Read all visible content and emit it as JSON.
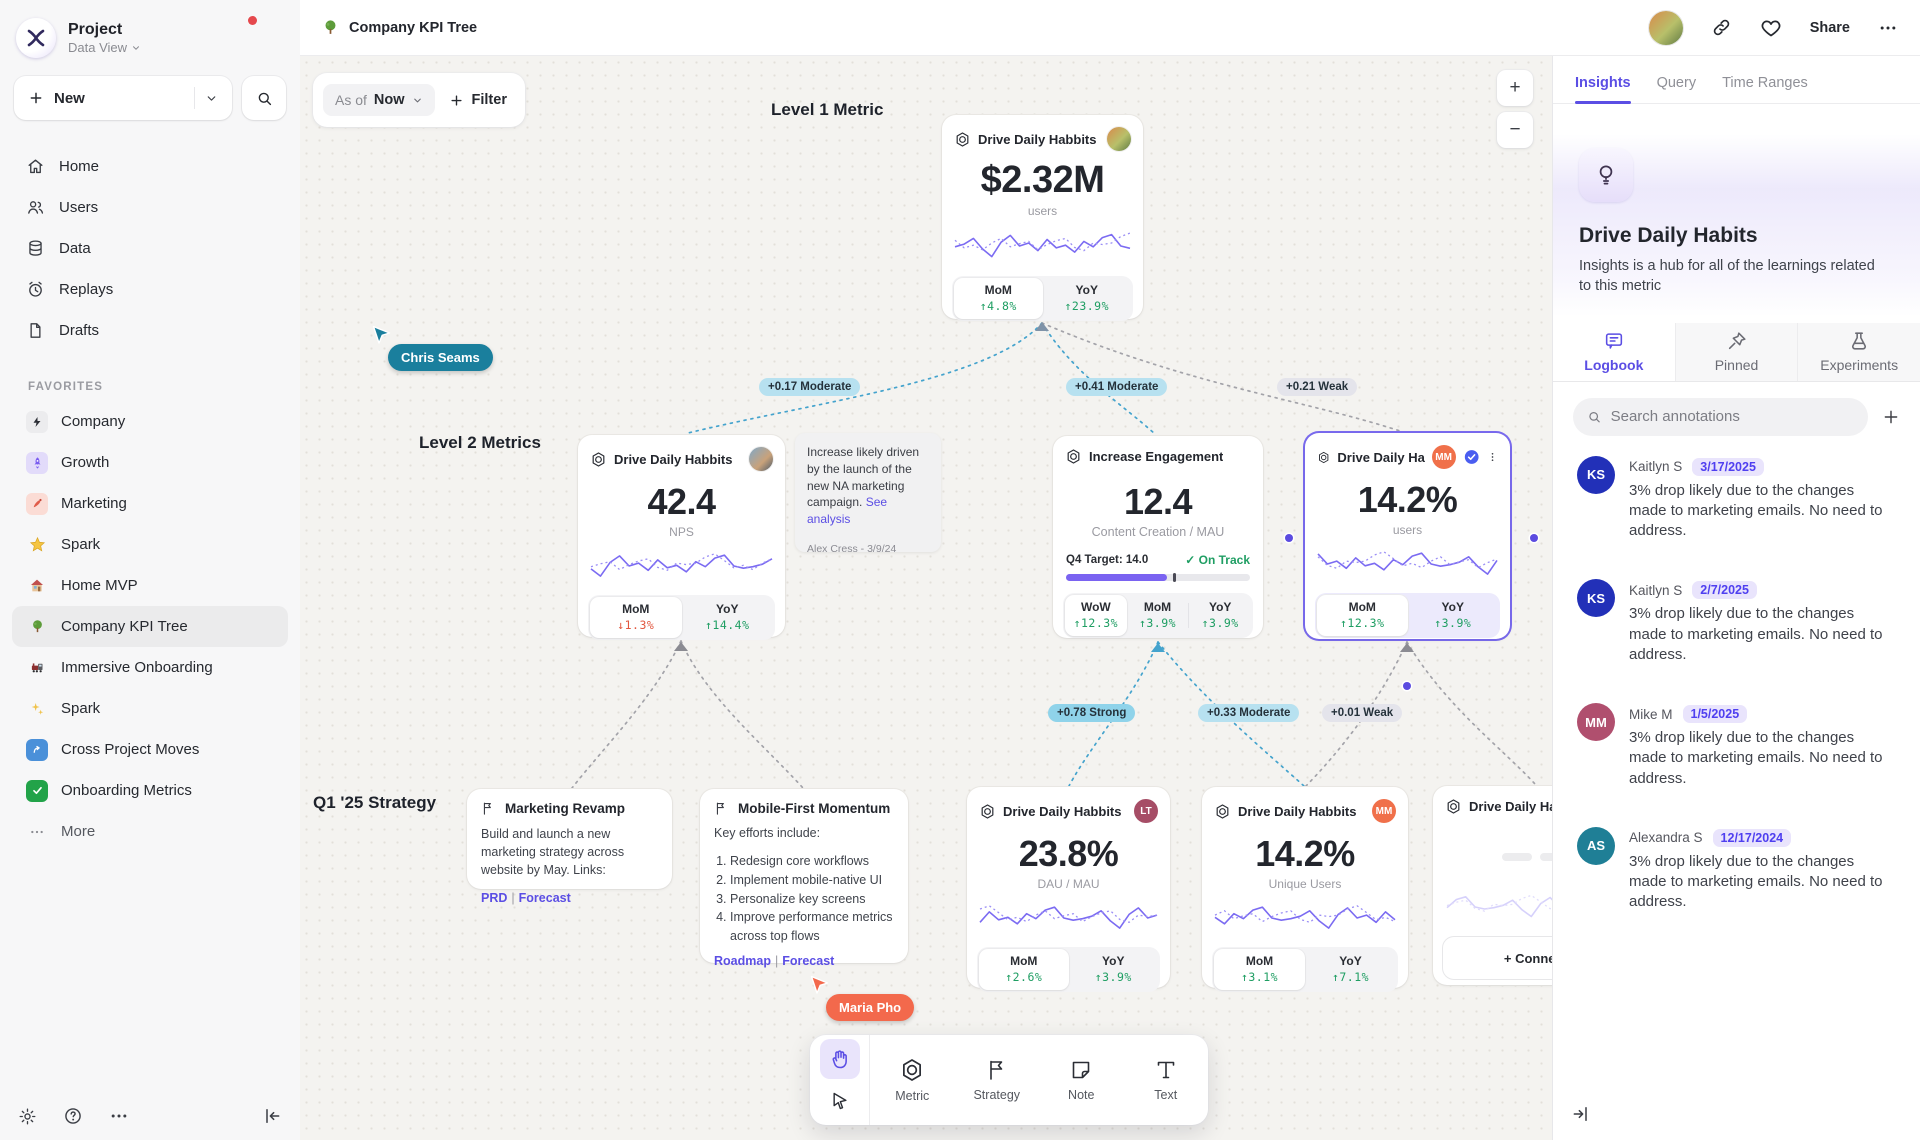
{
  "sidebar": {
    "project_title": "Project",
    "project_subtitle": "Data View",
    "new_button": "New",
    "nav": [
      {
        "label": "Home",
        "icon": "home-icon"
      },
      {
        "label": "Users",
        "icon": "users-icon"
      },
      {
        "label": "Data",
        "icon": "database-icon"
      },
      {
        "label": "Replays",
        "icon": "replay-icon"
      },
      {
        "label": "Drafts",
        "icon": "draft-icon"
      }
    ],
    "favorites_label": "FAVORITES",
    "favorites": [
      {
        "label": "Company",
        "icon": "bolt-icon"
      },
      {
        "label": "Growth",
        "icon": "rocket-icon"
      },
      {
        "label": "Marketing",
        "icon": "paint-icon"
      },
      {
        "label": "Spark",
        "icon": "star-icon"
      },
      {
        "label": "Home MVP",
        "icon": "house-icon"
      },
      {
        "label": "Company KPI Tree",
        "icon": "tree-icon",
        "active": true
      },
      {
        "label": "Immersive Onboarding",
        "icon": "train-icon"
      },
      {
        "label": "Spark",
        "icon": "sparkles-icon"
      },
      {
        "label": "Cross Project Moves",
        "icon": "arrow-up-right-icon"
      },
      {
        "label": "Onboarding Metrics",
        "icon": "check-icon"
      },
      {
        "label": "More",
        "icon": "ellipsis-icon"
      }
    ]
  },
  "header": {
    "title": "Company KPI Tree",
    "share_label": "Share"
  },
  "canvas": {
    "asof_prefix": "As of",
    "asof_value": "Now",
    "filter_label": "Filter",
    "zoom_in": "+",
    "zoom_out": "−",
    "labels": {
      "level1": "Level 1 Metric",
      "level2": "Level 2 Metrics",
      "strategy": "Q1 '25 Strategy"
    },
    "edges": [
      {
        "text": "+0.17 Moderate",
        "strength": "moderate"
      },
      {
        "text": "+0.41 Moderate",
        "strength": "moderate"
      },
      {
        "text": "+0.21 Weak",
        "strength": "weak"
      },
      {
        "text": "+0.78 Strong",
        "strength": "strong"
      },
      {
        "text": "+0.33 Moderate",
        "strength": "moderate"
      },
      {
        "text": "+0.01 Weak",
        "strength": "weak"
      }
    ],
    "cursors": [
      {
        "name": "Chris Seams",
        "color": "#1a7f9d"
      },
      {
        "name": "Maria Pho",
        "color": "#f3694c"
      }
    ]
  },
  "cards": {
    "level1": {
      "title": "Drive Daily Habbits",
      "value": "$2.32M",
      "unit": "users",
      "stats": [
        {
          "label": "MoM",
          "value": "↑4.8%",
          "color": "#1f9e63"
        },
        {
          "label": "YoY",
          "value": "↑23.9%",
          "color": "#1f9e63"
        }
      ]
    },
    "nps": {
      "title": "Drive Daily Habbits",
      "value": "42.4",
      "unit": "NPS",
      "stats": [
        {
          "label": "MoM",
          "value": "↓1.3%",
          "color": "#e2573f"
        },
        {
          "label": "YoY",
          "value": "↑14.4%",
          "color": "#1f9e63"
        }
      ]
    },
    "note": {
      "text": "Increase likely driven by the launch of the new NA marketing campaign.",
      "link": "See analysis",
      "author": "Alex Cress - 3/9/24"
    },
    "engagement": {
      "title": "Increase Engagement",
      "value": "12.4",
      "unit": "Content Creation / MAU",
      "target_label": "Q4 Target: 14.0",
      "status": "✓ On Track",
      "stats": [
        {
          "label": "WoW",
          "value": "↑12.3%",
          "color": "#1f9e63"
        },
        {
          "label": "MoM",
          "value": "↑3.9%",
          "color": "#1f9e63"
        },
        {
          "label": "YoY",
          "value": "↑3.9%",
          "color": "#1f9e63"
        }
      ]
    },
    "selected": {
      "title": "Drive Daily Habb..",
      "avatar_initials": "MM",
      "avatar_color": "#f0704a",
      "value": "14.2%",
      "unit": "users",
      "stats": [
        {
          "label": "MoM",
          "value": "↑12.3%",
          "color": "#1f9e63"
        },
        {
          "label": "YoY",
          "value": "↑3.9%",
          "color": "#1f9e63"
        }
      ]
    },
    "marketing": {
      "title": "Marketing Revamp",
      "body": "Build and launch a new marketing strategy across website by May. Links:",
      "links": [
        "PRD",
        "Forecast"
      ]
    },
    "mobile": {
      "title": "Mobile-First Momentum",
      "intro": "Key efforts include:",
      "items": [
        "Redesign core workflows",
        "Implement mobile-native UI",
        "Personalize key screens",
        "Improve performance metrics across top flows"
      ],
      "links": [
        "Roadmap",
        "Forecast"
      ]
    },
    "daumau": {
      "title": "Drive Daily Habbits",
      "avatar_initials": "LT",
      "avatar_color": "#a64d66",
      "value": "23.8%",
      "unit": "DAU / MAU",
      "stats": [
        {
          "label": "MoM",
          "value": "↑2.6%",
          "color": "#1f9e63"
        },
        {
          "label": "YoY",
          "value": "↑3.9%",
          "color": "#1f9e63"
        }
      ]
    },
    "unique": {
      "title": "Drive Daily Habbits",
      "avatar_initials": "MM",
      "avatar_color": "#f0704a",
      "value": "14.2%",
      "unit": "Unique Users",
      "stats": [
        {
          "label": "MoM",
          "value": "↑3.1%",
          "color": "#1f9e63"
        },
        {
          "label": "YoY",
          "value": "↑7.1%",
          "color": "#1f9e63"
        }
      ]
    },
    "partial": {
      "title": "Drive Daily Habbits",
      "connect_label": "+ Connect"
    }
  },
  "toolbar": {
    "tools": [
      {
        "label": "Metric",
        "icon": "metric-hexagon-icon"
      },
      {
        "label": "Strategy",
        "icon": "flag-icon"
      },
      {
        "label": "Note",
        "icon": "note-icon"
      },
      {
        "label": "Text",
        "icon": "text-icon"
      }
    ]
  },
  "panel": {
    "tabs": [
      {
        "label": "Insights",
        "active": true
      },
      {
        "label": "Query"
      },
      {
        "label": "Time Ranges"
      }
    ],
    "insight": {
      "title": "Drive Daily Habits",
      "description": "Insights is a hub for all of the learnings related to this metric"
    },
    "logbook_tabs": [
      {
        "label": "Logbook",
        "active": true
      },
      {
        "label": "Pinned"
      },
      {
        "label": "Experiments"
      }
    ],
    "search_placeholder": "Search annotations",
    "annotations": [
      {
        "initials": "KS",
        "color": "#2230b8",
        "name": "Kaitlyn S",
        "date": "3/17/2025",
        "text": "3% drop likely due to the changes made to marketing emails. No need to address."
      },
      {
        "initials": "KS",
        "color": "#2230b8",
        "name": "Kaitlyn S",
        "date": "2/7/2025",
        "text": "3% drop likely due to the changes made to marketing emails. No need to address."
      },
      {
        "initials": "MM",
        "color": "#b04f6e",
        "name": "Mike M",
        "date": "1/5/2025",
        "text": "3% drop likely due to the changes made to marketing emails. No need to address."
      },
      {
        "initials": "AS",
        "color": "#1f7f96",
        "name": "Alexandra S",
        "date": "12/17/2024",
        "text": "3% drop likely due to the changes made to marketing emails. No need to address."
      }
    ]
  }
}
